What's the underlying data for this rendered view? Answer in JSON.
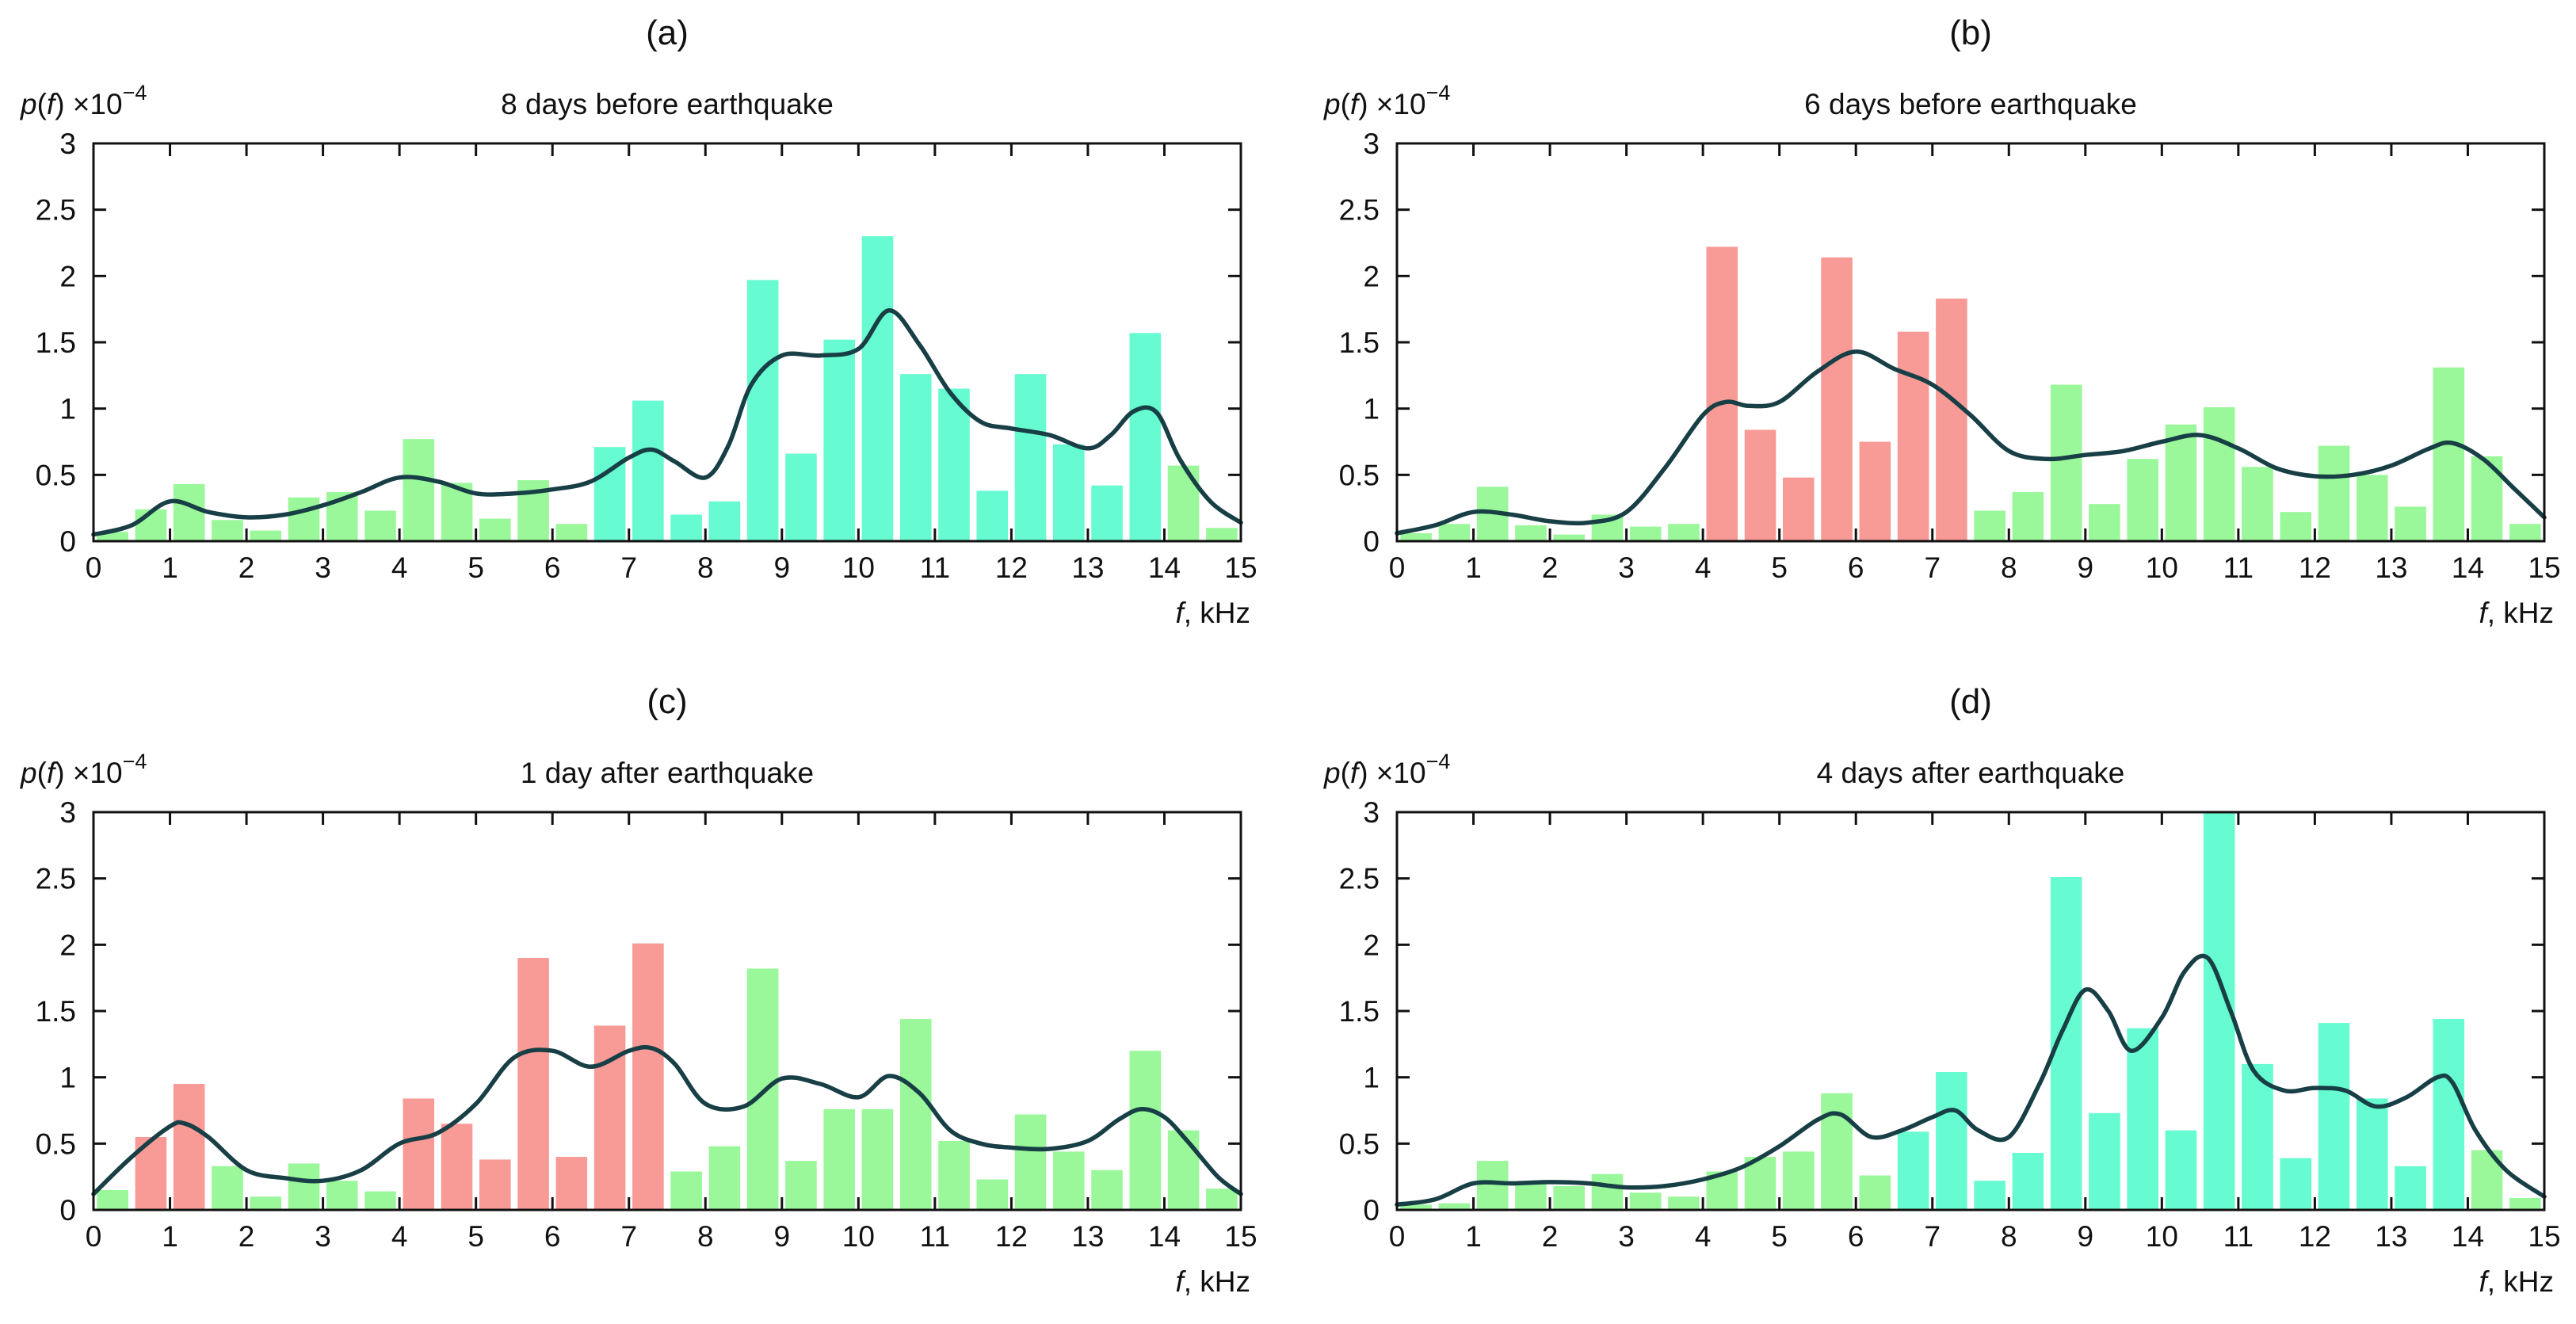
{
  "figure": {
    "ylabel_func": "p(f)",
    "ylabel_scale": "×10",
    "ylabel_exp": "−4",
    "xlabel_italic": "f",
    "xlabel_unit": ", kHz"
  },
  "colors": {
    "green": "#9af79a",
    "cyan": "#66fbd0",
    "red": "#f89a96",
    "curve": "#173f45",
    "axis": "#111111"
  },
  "chart_data": [
    {
      "type": "bar",
      "panel": "(a)",
      "title": "8 days before earthquake",
      "ylabel": "p(f) ×10−4",
      "xlabel": "f, kHz",
      "xlim": [
        0,
        15
      ],
      "ylim": [
        0,
        3
      ],
      "xticks": [
        0,
        1,
        2,
        3,
        4,
        5,
        6,
        7,
        8,
        9,
        10,
        11,
        12,
        13,
        14,
        15
      ],
      "yticks": [
        0,
        0.5,
        1,
        1.5,
        2,
        2.5,
        3
      ],
      "ytick_labels": [
        "0",
        "0.5",
        "1",
        "1.5",
        "2",
        "2.5",
        "3"
      ],
      "bar_x": [
        0.25,
        0.75,
        1.25,
        1.75,
        2.25,
        2.75,
        3.25,
        3.75,
        4.25,
        4.75,
        5.25,
        5.75,
        6.25,
        6.75,
        7.25,
        7.75,
        8.25,
        8.75,
        9.25,
        9.75,
        10.25,
        10.75,
        11.25,
        11.75,
        12.25,
        12.75,
        13.25,
        13.75,
        14.25,
        14.75
      ],
      "values": [
        0.07,
        0.24,
        0.43,
        0.16,
        0.08,
        0.33,
        0.37,
        0.23,
        0.77,
        0.44,
        0.17,
        0.46,
        0.13,
        0.71,
        1.06,
        0.2,
        0.3,
        1.97,
        0.66,
        1.52,
        2.3,
        1.26,
        1.15,
        0.38,
        1.26,
        0.73,
        0.42,
        1.57,
        0.57,
        0.1
      ],
      "bar_colors": [
        "green",
        "green",
        "green",
        "green",
        "green",
        "green",
        "green",
        "green",
        "green",
        "green",
        "green",
        "green",
        "green",
        "cyan",
        "cyan",
        "cyan",
        "cyan",
        "cyan",
        "cyan",
        "cyan",
        "cyan",
        "cyan",
        "cyan",
        "cyan",
        "cyan",
        "cyan",
        "cyan",
        "cyan",
        "green",
        "green"
      ],
      "curve": {
        "x": [
          0,
          0.5,
          1,
          1.5,
          2,
          2.5,
          3,
          3.5,
          4,
          4.5,
          5,
          5.5,
          6,
          6.5,
          7,
          7.3,
          7.6,
          8,
          8.3,
          8.6,
          9,
          9.5,
          10,
          10.4,
          10.8,
          11.2,
          11.6,
          12,
          12.5,
          13,
          13.3,
          13.6,
          13.9,
          14.2,
          14.6,
          15
        ],
        "y": [
          0.05,
          0.12,
          0.3,
          0.22,
          0.18,
          0.2,
          0.27,
          0.37,
          0.48,
          0.45,
          0.36,
          0.36,
          0.39,
          0.45,
          0.63,
          0.69,
          0.6,
          0.48,
          0.72,
          1.18,
          1.4,
          1.4,
          1.45,
          1.74,
          1.48,
          1.12,
          0.9,
          0.85,
          0.8,
          0.7,
          0.8,
          0.98,
          0.97,
          0.62,
          0.3,
          0.14
        ]
      }
    },
    {
      "type": "bar",
      "panel": "(b)",
      "title": "6 days before earthquake",
      "ylabel": "p(f) ×10−4",
      "xlabel": "f, kHz",
      "xlim": [
        0,
        15
      ],
      "ylim": [
        0,
        3
      ],
      "xticks": [
        0,
        1,
        2,
        3,
        4,
        5,
        6,
        7,
        8,
        9,
        10,
        11,
        12,
        13,
        14,
        15
      ],
      "yticks": [
        0,
        0.5,
        1,
        1.5,
        2,
        2.5,
        3
      ],
      "ytick_labels": [
        "0",
        "0.5",
        "1",
        "1.5",
        "2",
        "2.5",
        "3"
      ],
      "bar_x": [
        0.25,
        0.75,
        1.25,
        1.75,
        2.25,
        2.75,
        3.25,
        3.75,
        4.25,
        4.75,
        5.25,
        5.75,
        6.25,
        6.75,
        7.25,
        7.75,
        8.25,
        8.75,
        9.25,
        9.75,
        10.25,
        10.75,
        11.25,
        11.75,
        12.25,
        12.75,
        13.25,
        13.75,
        14.25,
        14.75
      ],
      "values": [
        0.06,
        0.13,
        0.41,
        0.12,
        0.05,
        0.2,
        0.11,
        0.13,
        2.22,
        0.84,
        0.48,
        2.14,
        0.75,
        1.58,
        1.83,
        0.23,
        0.37,
        1.18,
        0.28,
        0.62,
        0.88,
        1.01,
        0.56,
        0.22,
        0.72,
        0.5,
        0.26,
        1.31,
        0.64,
        0.13
      ],
      "bar_colors": [
        "green",
        "green",
        "green",
        "green",
        "green",
        "green",
        "green",
        "green",
        "red",
        "red",
        "red",
        "red",
        "red",
        "red",
        "red",
        "green",
        "green",
        "green",
        "green",
        "green",
        "green",
        "green",
        "green",
        "green",
        "green",
        "green",
        "green",
        "green",
        "green",
        "green"
      ],
      "curve": {
        "x": [
          0,
          0.5,
          1,
          1.5,
          2,
          2.5,
          3,
          3.5,
          4,
          4.3,
          4.6,
          5,
          5.5,
          6,
          6.5,
          7,
          7.5,
          8,
          8.5,
          9,
          9.5,
          10,
          10.5,
          11,
          11.5,
          12,
          12.5,
          13,
          13.5,
          13.8,
          14.2,
          14.6,
          15
        ],
        "y": [
          0.06,
          0.12,
          0.22,
          0.2,
          0.15,
          0.14,
          0.22,
          0.55,
          0.95,
          1.05,
          1.02,
          1.05,
          1.28,
          1.43,
          1.3,
          1.18,
          0.95,
          0.68,
          0.62,
          0.65,
          0.68,
          0.75,
          0.8,
          0.7,
          0.55,
          0.49,
          0.5,
          0.57,
          0.7,
          0.74,
          0.62,
          0.4,
          0.18
        ]
      }
    },
    {
      "type": "bar",
      "panel": "(c)",
      "title": "1 day after earthquake",
      "ylabel": "p(f) ×10−4",
      "xlabel": "f, kHz",
      "xlim": [
        0,
        15
      ],
      "ylim": [
        0,
        3
      ],
      "xticks": [
        0,
        1,
        2,
        3,
        4,
        5,
        6,
        7,
        8,
        9,
        10,
        11,
        12,
        13,
        14,
        15
      ],
      "yticks": [
        0,
        0.5,
        1,
        1.5,
        2,
        2.5,
        3
      ],
      "ytick_labels": [
        "0",
        "0.5",
        "1",
        "1.5",
        "2",
        "2.5",
        "3"
      ],
      "bar_x": [
        0.25,
        0.75,
        1.25,
        1.75,
        2.25,
        2.75,
        3.25,
        3.75,
        4.25,
        4.75,
        5.25,
        5.75,
        6.25,
        6.75,
        7.25,
        7.75,
        8.25,
        8.75,
        9.25,
        9.75,
        10.25,
        10.75,
        11.25,
        11.75,
        12.25,
        12.75,
        13.25,
        13.75,
        14.25,
        14.75
      ],
      "values": [
        0.15,
        0.55,
        0.95,
        0.33,
        0.1,
        0.35,
        0.22,
        0.14,
        0.84,
        0.65,
        0.38,
        1.9,
        0.4,
        1.39,
        2.01,
        0.29,
        0.48,
        1.82,
        0.37,
        0.76,
        0.76,
        1.44,
        0.52,
        0.23,
        0.72,
        0.44,
        0.3,
        1.2,
        0.6,
        0.16
      ],
      "bar_colors": [
        "green",
        "red",
        "red",
        "green",
        "green",
        "green",
        "green",
        "green",
        "red",
        "red",
        "red",
        "red",
        "red",
        "red",
        "red",
        "green",
        "green",
        "green",
        "green",
        "green",
        "green",
        "green",
        "green",
        "green",
        "green",
        "green",
        "green",
        "green",
        "green",
        "green"
      ],
      "curve": {
        "x": [
          0,
          0.5,
          1,
          1.2,
          1.5,
          2,
          2.5,
          3,
          3.5,
          4,
          4.5,
          5,
          5.5,
          6,
          6.5,
          7,
          7.3,
          7.6,
          8,
          8.5,
          9,
          9.5,
          10,
          10.4,
          10.8,
          11.2,
          11.6,
          12,
          12.5,
          13,
          13.4,
          13.7,
          14,
          14.3,
          14.7,
          15
        ],
        "y": [
          0.12,
          0.4,
          0.63,
          0.65,
          0.55,
          0.3,
          0.24,
          0.22,
          0.3,
          0.5,
          0.58,
          0.8,
          1.15,
          1.2,
          1.08,
          1.2,
          1.22,
          1.1,
          0.8,
          0.78,
          0.99,
          0.95,
          0.85,
          1.01,
          0.88,
          0.6,
          0.5,
          0.47,
          0.46,
          0.52,
          0.68,
          0.76,
          0.7,
          0.52,
          0.25,
          0.12
        ]
      }
    },
    {
      "type": "bar",
      "panel": "(d)",
      "title": "4 days after earthquake",
      "ylabel": "p(f) ×10−4",
      "xlabel": "f, kHz",
      "xlim": [
        0,
        15
      ],
      "ylim": [
        0,
        3
      ],
      "xticks": [
        0,
        1,
        2,
        3,
        4,
        5,
        6,
        7,
        8,
        9,
        10,
        11,
        12,
        13,
        14,
        15
      ],
      "yticks": [
        0,
        0.5,
        1,
        1.5,
        2,
        2.5,
        3
      ],
      "ytick_labels": [
        "0",
        "0.5",
        "1",
        "1.5",
        "2",
        "2.5",
        "3"
      ],
      "bar_x": [
        0.25,
        0.75,
        1.25,
        1.75,
        2.25,
        2.75,
        3.25,
        3.75,
        4.25,
        4.75,
        5.25,
        5.75,
        6.25,
        6.75,
        7.25,
        7.75,
        8.25,
        8.75,
        9.25,
        9.75,
        10.25,
        10.75,
        11.25,
        11.75,
        12.25,
        12.75,
        13.25,
        13.75,
        14.25,
        14.75
      ],
      "values": [
        0.04,
        0.05,
        0.37,
        0.21,
        0.18,
        0.27,
        0.13,
        0.1,
        0.29,
        0.4,
        0.44,
        0.88,
        0.26,
        0.59,
        1.04,
        0.22,
        0.43,
        2.51,
        0.73,
        1.37,
        0.6,
        3.0,
        1.1,
        0.39,
        1.41,
        0.84,
        0.33,
        1.44,
        0.45,
        0.09
      ],
      "bar_colors": [
        "green",
        "green",
        "green",
        "green",
        "green",
        "green",
        "green",
        "green",
        "green",
        "green",
        "green",
        "green",
        "green",
        "cyan",
        "cyan",
        "cyan",
        "cyan",
        "cyan",
        "cyan",
        "cyan",
        "cyan",
        "cyan",
        "cyan",
        "cyan",
        "cyan",
        "cyan",
        "cyan",
        "cyan",
        "green",
        "green"
      ],
      "curve": {
        "x": [
          0,
          0.5,
          1,
          1.5,
          2,
          2.5,
          3,
          3.5,
          4,
          4.5,
          5,
          5.5,
          5.8,
          6.2,
          6.6,
          7,
          7.3,
          7.6,
          8,
          8.4,
          8.7,
          9,
          9.3,
          9.6,
          10,
          10.3,
          10.6,
          10.9,
          11.2,
          11.6,
          12,
          12.4,
          12.8,
          13.2,
          13.6,
          13.8,
          14.1,
          14.5,
          15
        ],
        "y": [
          0.04,
          0.08,
          0.2,
          0.2,
          0.21,
          0.2,
          0.17,
          0.18,
          0.23,
          0.32,
          0.48,
          0.68,
          0.72,
          0.55,
          0.6,
          0.7,
          0.75,
          0.6,
          0.55,
          0.95,
          1.35,
          1.66,
          1.5,
          1.2,
          1.45,
          1.8,
          1.9,
          1.5,
          1.05,
          0.9,
          0.92,
          0.9,
          0.78,
          0.85,
          1.0,
          0.96,
          0.6,
          0.3,
          0.1
        ]
      }
    }
  ]
}
